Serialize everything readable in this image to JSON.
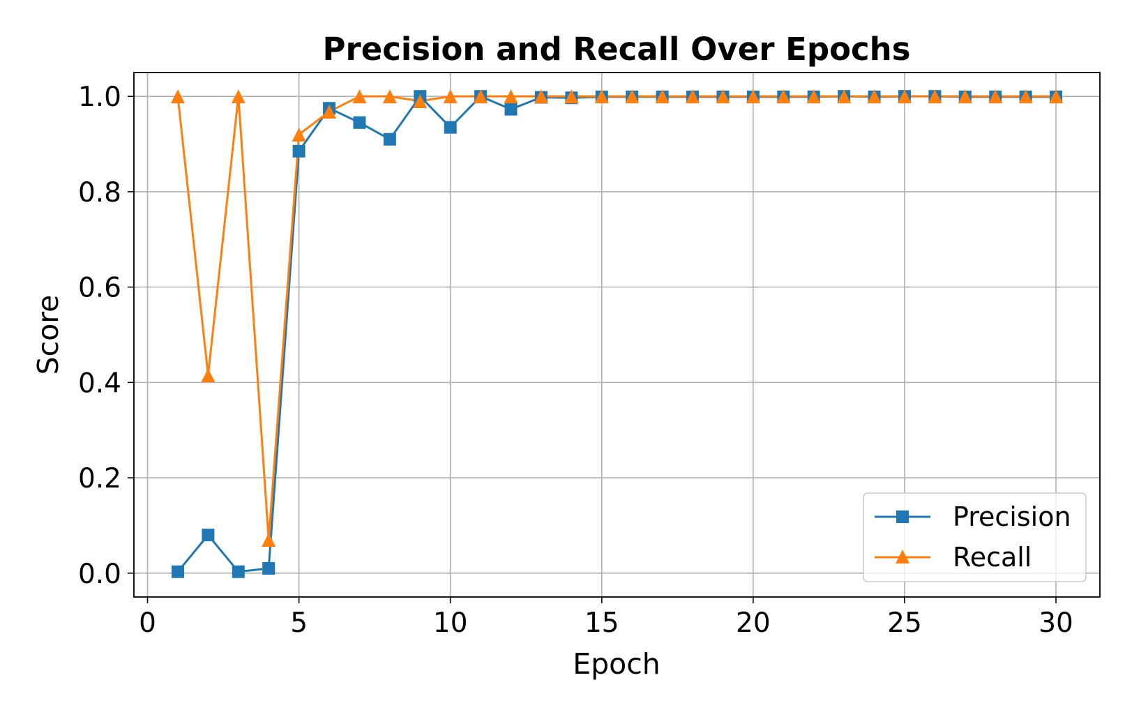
{
  "chart_data": {
    "type": "line",
    "title": "Precision and Recall Over Epochs",
    "xlabel": "Epoch",
    "ylabel": "Score",
    "xlim": [
      -0.45,
      31.45
    ],
    "ylim": [
      -0.05,
      1.05
    ],
    "xticks": [
      0,
      5,
      10,
      15,
      20,
      25,
      30
    ],
    "xtick_labels": [
      "0",
      "5",
      "10",
      "15",
      "20",
      "25",
      "30"
    ],
    "yticks": [
      0.0,
      0.2,
      0.4,
      0.6,
      0.8,
      1.0
    ],
    "ytick_labels": [
      "0.0",
      "0.2",
      "0.4",
      "0.6",
      "0.8",
      "1.0"
    ],
    "grid": true,
    "legend_position": "lower-right",
    "x": [
      1,
      2,
      3,
      4,
      5,
      6,
      7,
      8,
      9,
      10,
      11,
      12,
      13,
      14,
      15,
      16,
      17,
      18,
      19,
      20,
      21,
      22,
      23,
      24,
      25,
      26,
      27,
      28,
      29,
      30
    ],
    "series": [
      {
        "name": "Precision",
        "color": "#1f77b4",
        "marker": "square",
        "values": [
          0.003,
          0.08,
          0.003,
          0.01,
          0.885,
          0.975,
          0.945,
          0.91,
          1.0,
          0.935,
          1.0,
          0.973,
          0.998,
          0.997,
          0.999,
          0.999,
          0.999,
          0.999,
          0.999,
          0.999,
          0.999,
          0.999,
          1.0,
          0.999,
          1.0,
          1.0,
          0.999,
          0.999,
          0.999,
          0.999
        ]
      },
      {
        "name": "Recall",
        "color": "#ff7f0e",
        "marker": "triangle",
        "values": [
          1.0,
          0.415,
          1.0,
          0.07,
          0.92,
          0.968,
          1.0,
          1.0,
          0.99,
          1.0,
          1.0,
          1.0,
          1.0,
          1.0,
          1.0,
          1.0,
          1.0,
          1.0,
          1.0,
          1.0,
          1.0,
          1.0,
          1.0,
          1.0,
          1.0,
          1.0,
          1.0,
          1.0,
          1.0,
          1.0
        ]
      }
    ]
  }
}
